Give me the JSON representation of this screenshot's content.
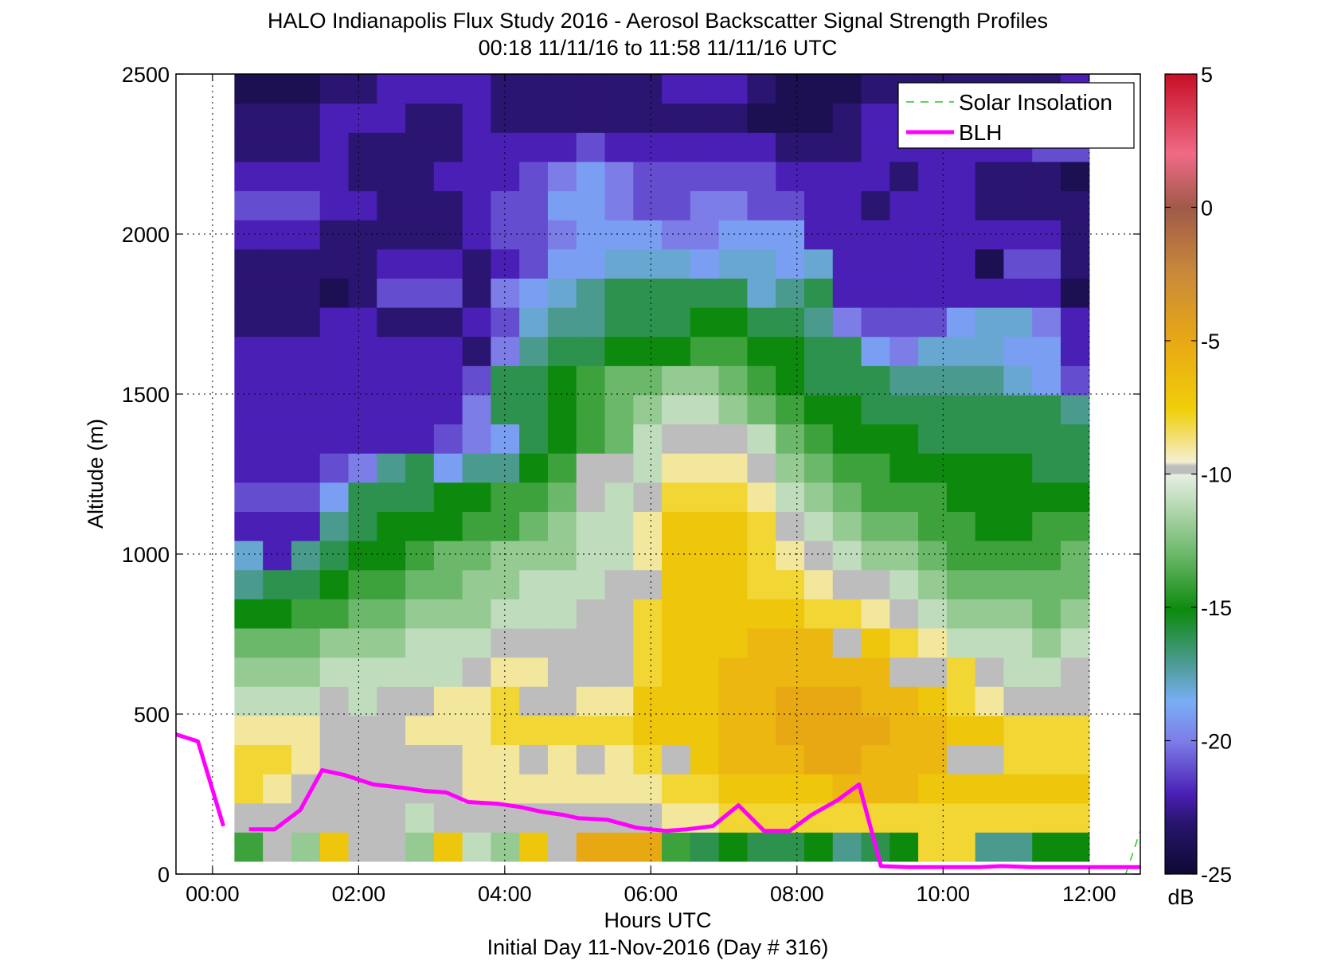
{
  "chart_data": {
    "type": "heatmap",
    "title_line1": "HALO Indianapolis Flux Study 2016 - Aerosol Backscatter Signal Strength Profiles",
    "title_line2": "00:18 11/11/16 to 11:58 11/11/16  UTC",
    "xlabel": "Hours UTC",
    "xlabel2": "Initial Day 11-Nov-2016 (Day # 316)",
    "ylabel": "Altitude (m)",
    "x_range_hours": [
      -0.5,
      12.7
    ],
    "y_range_m": [
      0,
      2500
    ],
    "x_ticks": [
      {
        "v": 0,
        "label": "00:00"
      },
      {
        "v": 2,
        "label": "02:00"
      },
      {
        "v": 4,
        "label": "04:00"
      },
      {
        "v": 6,
        "label": "06:00"
      },
      {
        "v": 8,
        "label": "08:00"
      },
      {
        "v": 10,
        "label": "10:00"
      },
      {
        "v": 12,
        "label": "12:00"
      }
    ],
    "y_ticks": [
      {
        "v": 0,
        "label": "0"
      },
      {
        "v": 500,
        "label": "500"
      },
      {
        "v": 1000,
        "label": "1000"
      },
      {
        "v": 1500,
        "label": "1500"
      },
      {
        "v": 2000,
        "label": "2000"
      },
      {
        "v": 2500,
        "label": "2500"
      }
    ],
    "grid": "dotted",
    "colorbar": {
      "range_db": [
        -25,
        5
      ],
      "ticks": [
        {
          "v": 5,
          "label": "5"
        },
        {
          "v": 0,
          "label": "0"
        },
        {
          "v": -5,
          "label": "-5"
        },
        {
          "v": -10,
          "label": "-10"
        },
        {
          "v": -15,
          "label": "-15"
        },
        {
          "v": -20,
          "label": "-20"
        },
        {
          "v": -25,
          "label": "-25"
        }
      ],
      "unit": "dB"
    },
    "heatmap": {
      "x_start_hours": 0.3,
      "x_end_hours": 12.0,
      "y_bottom_m": 40,
      "y_top_m": 2500,
      "rows": 27,
      "cols": 30,
      "cells_db": [
        [
          -14,
          -14,
          -12,
          -7,
          -7,
          -10,
          -12,
          -7,
          -11,
          -12,
          -7,
          -10,
          -5,
          -5,
          -5,
          -14,
          -16,
          -15,
          -16,
          -16,
          -15,
          -17,
          -16,
          -15,
          -8,
          -8,
          -17,
          -17,
          -15,
          -15
        ],
        [
          -10,
          -10,
          -10,
          -10,
          -10,
          -10,
          -11,
          -10,
          -10,
          -10,
          -10,
          -10,
          -10,
          -10,
          -10,
          -9,
          -9,
          -8,
          -8,
          -8,
          -8,
          -8,
          -8,
          -8,
          -8,
          -8,
          -8,
          -8,
          -8,
          -8
        ],
        [
          -8,
          -9,
          -10,
          -10,
          -10,
          -10,
          -10,
          -10,
          -9,
          -9,
          -9,
          -9,
          -9,
          -9,
          -9,
          -8,
          -8,
          -7,
          -7,
          -7,
          -7,
          -6,
          -6,
          -6,
          -7,
          -7,
          -7,
          -7,
          -7,
          -7
        ],
        [
          -8,
          -8,
          -9,
          -10,
          -10,
          -10,
          -10,
          -10,
          -9,
          -9,
          -9,
          -9,
          -9,
          -9,
          -8,
          -7,
          -7,
          -6,
          -6,
          -6,
          -5,
          -5,
          -6,
          -6,
          -6,
          -7,
          -7,
          -8,
          -8,
          -8
        ],
        [
          -9,
          -9,
          -9,
          -10,
          -10,
          -10,
          -9,
          -9,
          -9,
          -8,
          -8,
          -8,
          -8,
          -8,
          -7,
          -7,
          -7,
          -6,
          -6,
          -5,
          -5,
          -5,
          -5,
          -6,
          -6,
          -7,
          -7,
          -8,
          -8,
          -8
        ],
        [
          -11,
          -11,
          -11,
          -10,
          -11,
          -10,
          -10,
          -9,
          -9,
          -8,
          -8,
          -8,
          -9,
          -9,
          -7,
          -7,
          -7,
          -6,
          -6,
          -5,
          -5,
          -5,
          -6,
          -6,
          -7,
          -8,
          -9,
          -10,
          -10,
          -10
        ],
        [
          -12,
          -12,
          -12,
          -11,
          -11,
          -11,
          -11,
          -11,
          -10,
          -9,
          -9,
          -10,
          -10,
          -10,
          -8,
          -7,
          -7,
          -6,
          -6,
          -6,
          -6,
          -6,
          -6,
          -7,
          -7,
          -8,
          -10,
          -11,
          -11,
          -10
        ],
        [
          -13,
          -13,
          -13,
          -12,
          -12,
          -12,
          -11,
          -11,
          -11,
          -10,
          -10,
          -10,
          -10,
          -10,
          -8,
          -7,
          -7,
          -7,
          -6,
          -6,
          -6,
          -7,
          -7,
          -8,
          -9,
          -11,
          -11,
          -11,
          -12,
          -11
        ],
        [
          -15,
          -15,
          -14,
          -14,
          -13,
          -13,
          -12,
          -12,
          -12,
          -11,
          -11,
          -11,
          -10,
          -10,
          -8,
          -7,
          -7,
          -7,
          -7,
          -7,
          -8,
          -8,
          -9,
          -10,
          -11,
          -12,
          -12,
          -12,
          -13,
          -12
        ],
        [
          -17,
          -16,
          -16,
          -15,
          -14,
          -14,
          -13,
          -13,
          -12,
          -12,
          -11,
          -11,
          -11,
          -10,
          -8,
          -7,
          -7,
          -7,
          -8,
          -8,
          -9,
          -10,
          -10,
          -11,
          -12,
          -13,
          -13,
          -13,
          -13,
          -13
        ],
        [
          -18,
          -22,
          -17,
          -16,
          -15,
          -15,
          -14,
          -13,
          -13,
          -12,
          -12,
          -12,
          -11,
          -11,
          -9,
          -7,
          -7,
          -7,
          -8,
          -9,
          -10,
          -11,
          -12,
          -12,
          -13,
          -14,
          -14,
          -14,
          -14,
          -13
        ],
        [
          -22,
          -22,
          -22,
          -17,
          -16,
          -15,
          -15,
          -15,
          -14,
          -14,
          -13,
          -12,
          -11,
          -11,
          -9,
          -7,
          -7,
          -7,
          -8,
          -10,
          -11,
          -12,
          -13,
          -13,
          -14,
          -14,
          -15,
          -15,
          -14,
          -14
        ],
        [
          -21,
          -21,
          -21,
          -19,
          -16,
          -16,
          -16,
          -15,
          -15,
          -14,
          -14,
          -13,
          -12,
          -11,
          -10,
          -8,
          -8,
          -8,
          -9,
          -11,
          -12,
          -13,
          -14,
          -14,
          -14,
          -15,
          -15,
          -15,
          -15,
          -15
        ],
        [
          -22,
          -22,
          -22,
          -21,
          -20,
          -17,
          -16,
          -19,
          -17,
          -17,
          -15,
          -14,
          -13,
          -12,
          -11,
          -9,
          -9,
          -9,
          -10,
          -12,
          -13,
          -14,
          -14,
          -15,
          -15,
          -15,
          -15,
          -15,
          -16,
          -16
        ],
        [
          -22,
          -22,
          -22,
          -22,
          -22,
          -22,
          -22,
          -21,
          -20,
          -19,
          -16,
          -15,
          -14,
          -13,
          -11,
          -10,
          -10,
          -10,
          -11,
          -13,
          -14,
          -15,
          -15,
          -15,
          -16,
          -16,
          -16,
          -16,
          -16,
          -16
        ],
        [
          -22,
          -22,
          -22,
          -22,
          -22,
          -22,
          -22,
          -22,
          -20,
          -16,
          -16,
          -15,
          -14,
          -13,
          -12,
          -11,
          -11,
          -12,
          -13,
          -14,
          -15,
          -15,
          -16,
          -16,
          -16,
          -16,
          -16,
          -16,
          -16,
          -17
        ],
        [
          -22,
          -22,
          -22,
          -22,
          -22,
          -22,
          -22,
          -22,
          -21,
          -16,
          -16,
          -15,
          -14,
          -13,
          -13,
          -12,
          -12,
          -13,
          -14,
          -15,
          -16,
          -16,
          -16,
          -17,
          -17,
          -17,
          -17,
          -18,
          -19,
          -21
        ],
        [
          -22,
          -22,
          -22,
          -22,
          -22,
          -22,
          -22,
          -22,
          -23,
          -20,
          -17,
          -16,
          -16,
          -15,
          -15,
          -15,
          -14,
          -14,
          -15,
          -15,
          -16,
          -16,
          -19,
          -20,
          -18,
          -18,
          -18,
          -19,
          -19,
          -22
        ],
        [
          -23,
          -23,
          -23,
          -22,
          -22,
          -23,
          -23,
          -23,
          -22,
          -21,
          -18,
          -17,
          -17,
          -16,
          -16,
          -16,
          -15,
          -15,
          -16,
          -16,
          -17,
          -20,
          -21,
          -21,
          -21,
          -19,
          -18,
          -18,
          -20,
          -22
        ],
        [
          -23,
          -23,
          -23,
          -24,
          -23,
          -21,
          -21,
          -21,
          -23,
          -20,
          -19,
          -18,
          -17,
          -16,
          -16,
          -16,
          -16,
          -16,
          -18,
          -17,
          -16,
          -22,
          -22,
          -22,
          -22,
          -22,
          -22,
          -22,
          -22,
          -24
        ],
        [
          -23,
          -23,
          -23,
          -23,
          -23,
          -22,
          -22,
          -22,
          -23,
          -22,
          -21,
          -19,
          -19,
          -18,
          -18,
          -18,
          -19,
          -18,
          -18,
          -19,
          -18,
          -22,
          -22,
          -22,
          -22,
          -22,
          -24,
          -21,
          -21,
          -23
        ],
        [
          -22,
          -22,
          -22,
          -23,
          -23,
          -23,
          -23,
          -23,
          -22,
          -21,
          -21,
          -20,
          -19,
          -19,
          -19,
          -20,
          -20,
          -19,
          -19,
          -19,
          -22,
          -22,
          -22,
          -22,
          -22,
          -22,
          -22,
          -22,
          -22,
          -23
        ],
        [
          -21,
          -21,
          -21,
          -22,
          -22,
          -23,
          -23,
          -23,
          -22,
          -21,
          -21,
          -19,
          -19,
          -20,
          -21,
          -21,
          -20,
          -20,
          -21,
          -21,
          -22,
          -22,
          -23,
          -22,
          -22,
          -22,
          -23,
          -23,
          -23,
          -23
        ],
        [
          -22,
          -22,
          -22,
          -22,
          -23,
          -23,
          -23,
          -22,
          -22,
          -22,
          -21,
          -20,
          -19,
          -20,
          -21,
          -21,
          -21,
          -21,
          -21,
          -22,
          -22,
          -22,
          -22,
          -23,
          -22,
          -22,
          -23,
          -23,
          -23,
          -24
        ],
        [
          -23,
          -23,
          -23,
          -22,
          -23,
          -23,
          -23,
          -23,
          -22,
          -22,
          -22,
          -22,
          -21,
          -22,
          -22,
          -22,
          -22,
          -22,
          -22,
          -23,
          -23,
          -23,
          -22,
          -22,
          -22,
          -22,
          -22,
          -22,
          -21,
          -21
        ],
        [
          -23,
          -23,
          -23,
          -22,
          -22,
          -22,
          -23,
          -23,
          -22,
          -23,
          -23,
          -23,
          -23,
          -23,
          -23,
          -23,
          -23,
          -23,
          -24,
          -24,
          -24,
          -23,
          -22,
          -22,
          -22,
          -22,
          -22,
          -22,
          -21,
          -20
        ],
        [
          -24,
          -24,
          -24,
          -23,
          -23,
          -22,
          -22,
          -22,
          -22,
          -23,
          -23,
          -23,
          -23,
          -23,
          -23,
          -22,
          -22,
          -22,
          -23,
          -24,
          -24,
          -24,
          -23,
          -23,
          -23,
          -23,
          -23,
          -23,
          -23,
          -22
        ]
      ],
      "missing_rows": [
        [
          1,
          4
        ],
        [
          3,
          5,
          8
        ],
        [
          4
        ],
        [
          5,
          10,
          12,
          15,
          25,
          26
        ],
        [],
        [
          10,
          11
        ],
        [
          23,
          24
        ],
        [
          21
        ],
        [
          13
        ],
        [
          14
        ],
        [],
        [],
        [
          12
        ],
        [
          12,
          13
        ]
      ]
    },
    "series": [
      {
        "name": "Solar Insolation",
        "color": "#22c922",
        "style": "dashed",
        "x": [
          12.5,
          12.7
        ],
        "y": [
          0,
          135
        ]
      },
      {
        "name": "BLH",
        "color": "#ff00ff",
        "style": "solid",
        "x": [
          -0.55,
          -0.2,
          0.15,
          null,
          0.5,
          0.85,
          1.2,
          1.5,
          1.8,
          2.2,
          2.6,
          2.9,
          3.2,
          3.5,
          3.9,
          4.2,
          4.5,
          4.8,
          5.0,
          5.4,
          5.8,
          6.2,
          6.5,
          6.85,
          7.2,
          7.55,
          7.9,
          8.2,
          8.55,
          8.85,
          9.15,
          9.5,
          10.0,
          10.5,
          10.8,
          11.2,
          11.6,
          12.0,
          12.7
        ],
        "y": [
          440,
          415,
          150,
          null,
          140,
          140,
          200,
          325,
          310,
          280,
          270,
          260,
          255,
          225,
          220,
          210,
          195,
          185,
          175,
          170,
          145,
          135,
          140,
          150,
          215,
          135,
          135,
          185,
          230,
          280,
          25,
          22,
          22,
          22,
          25,
          22,
          22,
          22,
          22
        ]
      }
    ],
    "legend": {
      "position": "top-right",
      "entries": [
        {
          "label": "Solar Insolation",
          "color": "#22c922",
          "style": "dashed"
        },
        {
          "label": "BLH",
          "color": "#ff00ff",
          "style": "solid"
        }
      ]
    }
  }
}
